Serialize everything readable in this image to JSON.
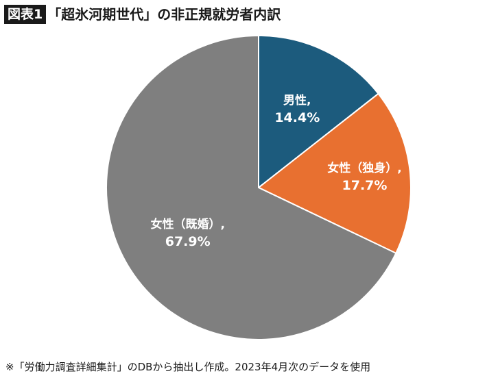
{
  "header": {
    "tag": "図表1",
    "title": "「超氷河期世代」の非正規就労者内訳"
  },
  "chart_data": {
    "type": "pie",
    "slices": [
      {
        "label": "男性,",
        "percent_label": "14.4%",
        "value": 14.4,
        "color": "#1c5b7d"
      },
      {
        "label": "女性（独身）,",
        "percent_label": "17.7%",
        "value": 17.7,
        "color": "#e87030"
      },
      {
        "label": "女性（既婚）,",
        "percent_label": "67.9%",
        "value": 67.9,
        "color": "#7f7f7f"
      }
    ]
  },
  "footnote": "※「労働力調査詳細集計」のDBから抽出し作成。2023年4月次のデータを使用"
}
